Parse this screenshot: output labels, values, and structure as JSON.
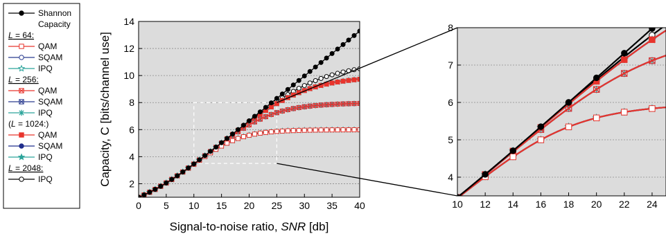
{
  "chart_data": [
    {
      "type": "line",
      "panel": "main",
      "xlabel": "Signal-to-noise ratio, SNR [db]",
      "xlabel_plain": "Signal-to-noise ratio, ",
      "xlabel_italic": "SNR",
      "xlabel_unit": " [db]",
      "ylabel": "Capacity, C [bits/channel use]",
      "xlim": [
        0,
        40
      ],
      "ylim": [
        1,
        14
      ],
      "xticks": [
        0,
        5,
        10,
        15,
        20,
        25,
        30,
        35,
        40
      ],
      "yticks": [
        2,
        4,
        6,
        8,
        10,
        12,
        14
      ],
      "grid": "horizontal dotted",
      "zoom_box": {
        "x": [
          10,
          25
        ],
        "y": [
          3.5,
          8
        ]
      },
      "series": [
        {
          "name": "Shannon Capacity",
          "group": "",
          "color": "#000000",
          "marker": "filled-circle",
          "limit": "shannon"
        },
        {
          "name": "QAM",
          "group": "L = 64:",
          "color": "#e8342c",
          "marker": "open-square",
          "bits": 6,
          "k": 1.0
        },
        {
          "name": "SQAM",
          "group": "L = 64:",
          "color": "#2b3c8f",
          "marker": "open-circle",
          "bits": 6,
          "k": 1.0
        },
        {
          "name": "IPQ",
          "group": "L = 64:",
          "color": "#2aa39a",
          "marker": "open-star",
          "bits": 6,
          "k": 1.0
        },
        {
          "name": "QAM",
          "group": "L = 256:",
          "color": "#e8342c",
          "marker": "x-square",
          "bits": 8,
          "k": 1.0
        },
        {
          "name": "SQAM",
          "group": "L = 256:",
          "color": "#2b3c8f",
          "marker": "x-square",
          "bits": 8,
          "k": 1.0
        },
        {
          "name": "IPQ",
          "group": "L = 256:",
          "color": "#2aa39a",
          "marker": "asterisk",
          "bits": 8,
          "k": 1.0
        },
        {
          "name": "QAM",
          "group": "(L = 1024:)",
          "color": "#e8342c",
          "marker": "filled-square",
          "bits": 10,
          "k": 1.0
        },
        {
          "name": "SQAM",
          "group": "(L = 1024:)",
          "color": "#1f2d8c",
          "marker": "filled-circle",
          "bits": 10,
          "k": 1.0
        },
        {
          "name": "IPQ",
          "group": "(L = 1024:)",
          "color": "#2aa39a",
          "marker": "filled-star",
          "bits": 10,
          "k": 1.0
        },
        {
          "name": "IPQ",
          "group": "L = 2048:",
          "color": "#000000",
          "marker": "open-circle",
          "bits": 11,
          "k": 1.0
        }
      ]
    },
    {
      "type": "line",
      "panel": "zoom",
      "xlim": [
        10,
        25
      ],
      "ylim": [
        3.5,
        8
      ],
      "xticks": [
        10,
        12,
        14,
        16,
        18,
        20,
        22,
        24
      ],
      "yticks": [
        4,
        5,
        6,
        7,
        8
      ],
      "grid": "horizontal dotted"
    }
  ],
  "legend": {
    "title": "Shannon",
    "title2": "Capacity",
    "groups": [
      {
        "label": "L = 64:",
        "label_l": "L",
        "label_rest": " = 64:",
        "underline": true,
        "items": [
          {
            "name": "QAM",
            "color": "#e8342c",
            "marker": "open-square"
          },
          {
            "name": "SQAM",
            "color": "#2b3c8f",
            "marker": "open-circle"
          },
          {
            "name": "IPQ",
            "color": "#2aa39a",
            "marker": "open-star"
          }
        ]
      },
      {
        "label": "L = 256:",
        "label_l": "L",
        "label_rest": " = 256:",
        "underline": true,
        "items": [
          {
            "name": "QAM",
            "color": "#e8342c",
            "marker": "x-square"
          },
          {
            "name": "SQAM",
            "color": "#2b3c8f",
            "marker": "x-square"
          },
          {
            "name": "IPQ",
            "color": "#2aa39a",
            "marker": "asterisk"
          }
        ]
      },
      {
        "label": "(L = 1024:)",
        "label_l": "L",
        "label_pre": "(",
        "label_rest": " = 1024:)",
        "underline": false,
        "items": [
          {
            "name": "QAM",
            "color": "#e8342c",
            "marker": "filled-square"
          },
          {
            "name": "SQAM",
            "color": "#1f2d8c",
            "marker": "filled-circle"
          },
          {
            "name": "IPQ",
            "color": "#2aa39a",
            "marker": "filled-star"
          }
        ]
      },
      {
        "label": "L = 2048:",
        "label_l": "L",
        "label_rest": " = 2048:",
        "underline": true,
        "items": [
          {
            "name": "IPQ",
            "color": "#000000",
            "marker": "open-circle"
          }
        ]
      }
    ]
  },
  "colors": {
    "plot_bg": "#dcdcdc",
    "shannon": "#000000"
  }
}
